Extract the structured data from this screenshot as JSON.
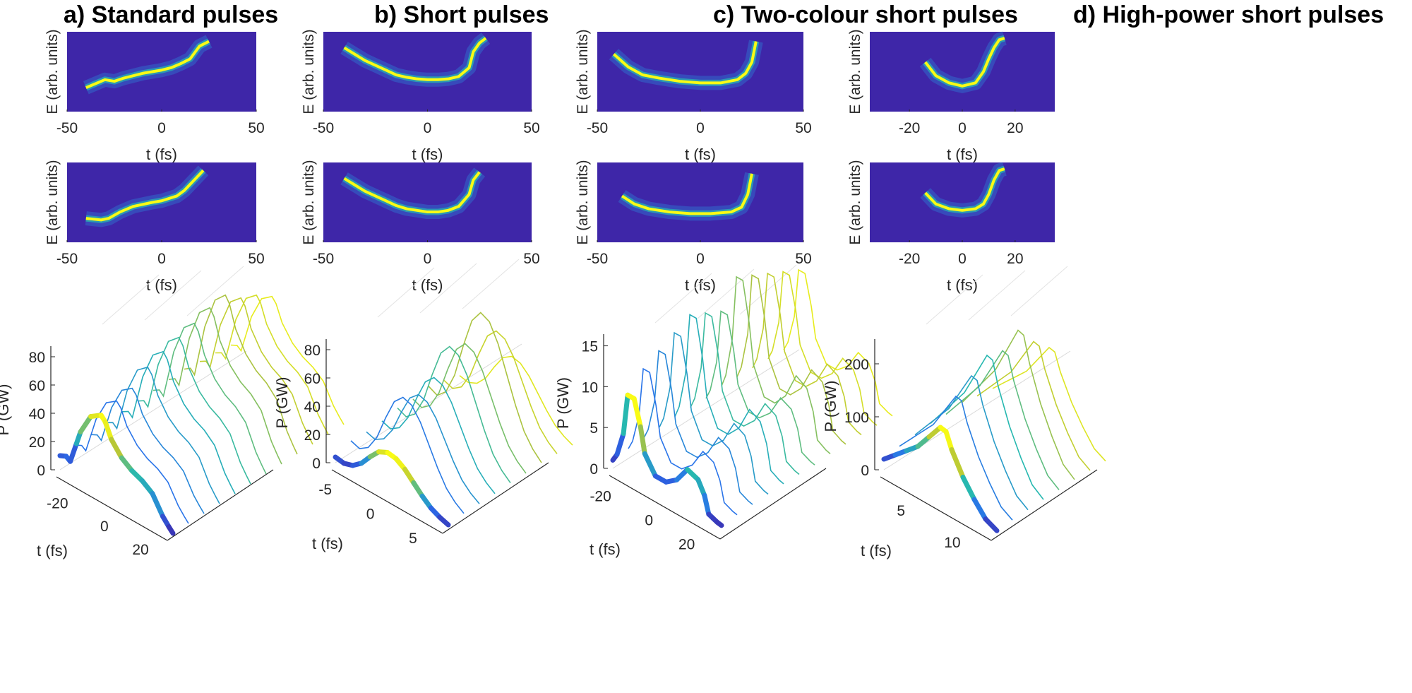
{
  "panel_titles": [
    "a) Standard pulses",
    "b) Short pulses",
    "c) Two-colour short pulses",
    "d) High-power short pulses"
  ],
  "labels": {
    "energy_axis": "E (arb. units)",
    "time_axis": "t (fs)",
    "power_axis": "P (GW)"
  },
  "colors": {
    "colormap_low": "#3e26a8",
    "colormap_mid": "#27b8b0",
    "colormap_high": "#f9fb15",
    "axis": "#262626"
  },
  "chart_data": [
    {
      "id": "a",
      "type": "heatmap",
      "row": "top",
      "title": "a) Standard pulses",
      "xlabel": "t (fs)",
      "ylabel": "E (arb. units)",
      "xlim": [
        -50,
        50
      ],
      "xticks": [
        -50,
        0,
        50
      ],
      "trace": {
        "t": [
          -40,
          -30,
          -25,
          -20,
          -15,
          -10,
          -5,
          0,
          5,
          10,
          15,
          20,
          25
        ],
        "y": [
          0.3,
          0.4,
          0.38,
          0.42,
          0.45,
          0.48,
          0.5,
          0.52,
          0.55,
          0.6,
          0.66,
          0.82,
          0.88
        ]
      }
    },
    {
      "id": "b",
      "type": "heatmap",
      "row": "top",
      "title": "b) Short pulses",
      "xlabel": "t (fs)",
      "ylabel": "E (arb. units)",
      "xlim": [
        -50,
        50
      ],
      "xticks": [
        -50,
        0,
        50
      ],
      "trace": {
        "t": [
          -40,
          -35,
          -30,
          -25,
          -20,
          -15,
          -10,
          -5,
          0,
          5,
          10,
          15,
          20,
          22,
          25,
          28
        ],
        "y": [
          0.8,
          0.72,
          0.64,
          0.58,
          0.52,
          0.46,
          0.43,
          0.41,
          0.4,
          0.4,
          0.41,
          0.44,
          0.55,
          0.75,
          0.86,
          0.92
        ]
      }
    },
    {
      "id": "c",
      "type": "heatmap",
      "row": "top",
      "title": "c) Two-colour short pulses",
      "xlabel": "t (fs)",
      "ylabel": "E (arb. units)",
      "xlim": [
        -50,
        50
      ],
      "xticks": [
        -50,
        0,
        50
      ],
      "trace": {
        "t": [
          -42,
          -35,
          -28,
          -20,
          -10,
          0,
          10,
          18,
          22,
          25,
          27
        ],
        "y": [
          0.72,
          0.56,
          0.46,
          0.42,
          0.38,
          0.36,
          0.36,
          0.4,
          0.48,
          0.62,
          0.88
        ]
      }
    },
    {
      "id": "d",
      "type": "heatmap",
      "row": "top",
      "title": "d) High-power short pulses",
      "xlabel": "t (fs)",
      "ylabel": "E (arb. units)",
      "xlim": [
        -35,
        35
      ],
      "xticks": [
        -20,
        0,
        20
      ],
      "trace": {
        "t": [
          -14,
          -10,
          -5,
          0,
          5,
          8,
          10,
          12,
          14,
          16
        ],
        "y": [
          0.62,
          0.45,
          0.36,
          0.32,
          0.36,
          0.5,
          0.66,
          0.8,
          0.9,
          0.92
        ]
      }
    },
    {
      "id": "a",
      "type": "heatmap",
      "row": "middle",
      "xlabel": "t (fs)",
      "ylabel": "E (arb. units)",
      "xlim": [
        -50,
        50
      ],
      "xticks": [
        -50,
        0,
        50
      ],
      "trace": {
        "t": [
          -40,
          -32,
          -28,
          -22,
          -15,
          -5,
          0,
          8,
          12,
          16,
          20,
          22
        ],
        "y": [
          0.3,
          0.28,
          0.3,
          0.38,
          0.45,
          0.5,
          0.52,
          0.58,
          0.65,
          0.75,
          0.85,
          0.9
        ]
      }
    },
    {
      "id": "b",
      "type": "heatmap",
      "row": "middle",
      "xlabel": "t (fs)",
      "ylabel": "E (arb. units)",
      "xlim": [
        -50,
        50
      ],
      "xticks": [
        -50,
        0,
        50
      ],
      "trace": {
        "t": [
          -40,
          -35,
          -30,
          -25,
          -20,
          -15,
          -10,
          -5,
          0,
          5,
          10,
          15,
          20,
          22,
          25
        ],
        "y": [
          0.8,
          0.72,
          0.64,
          0.58,
          0.52,
          0.46,
          0.42,
          0.4,
          0.38,
          0.38,
          0.4,
          0.45,
          0.6,
          0.78,
          0.88
        ]
      }
    },
    {
      "id": "c",
      "type": "heatmap",
      "row": "middle",
      "xlabel": "t (fs)",
      "ylabel": "E (arb. units)",
      "xlim": [
        -50,
        50
      ],
      "xticks": [
        -50,
        0,
        50
      ],
      "trace": {
        "t": [
          -38,
          -32,
          -25,
          -15,
          -5,
          5,
          15,
          20,
          23,
          25
        ],
        "y": [
          0.58,
          0.48,
          0.42,
          0.38,
          0.36,
          0.36,
          0.38,
          0.44,
          0.6,
          0.86
        ]
      }
    },
    {
      "id": "d",
      "type": "heatmap",
      "row": "middle",
      "xlabel": "t (fs)",
      "ylabel": "E (arb. units)",
      "xlim": [
        -35,
        35
      ],
      "xticks": [
        -20,
        0,
        20
      ],
      "trace": {
        "t": [
          -14,
          -10,
          -5,
          0,
          5,
          8,
          10,
          12,
          14,
          16
        ],
        "y": [
          0.62,
          0.48,
          0.42,
          0.4,
          0.42,
          0.48,
          0.6,
          0.78,
          0.9,
          0.92
        ]
      }
    },
    {
      "id": "a",
      "type": "line",
      "row": "bottom",
      "projection": "waterfall-3d",
      "xlabel": "t (fs)",
      "ylabel": "P (GW)",
      "ylim": [
        0,
        85
      ],
      "yticks": [
        0,
        20,
        40,
        60,
        80
      ],
      "xlim": [
        -30,
        25
      ],
      "xticks": [
        -20,
        0,
        20
      ],
      "highlight": {
        "t": [
          -30,
          -27,
          -25,
          -22,
          -20,
          -15,
          -10,
          -8,
          -5,
          0,
          5,
          10,
          15,
          20,
          23,
          25
        ],
        "p": [
          10,
          12,
          10,
          25,
          35,
          50,
          55,
          52,
          42,
          33,
          28,
          25,
          20,
          8,
          3,
          0
        ]
      },
      "series_count": 12,
      "series_peaks": [
        55,
        58,
        60,
        68,
        72,
        75,
        78,
        82,
        84,
        75,
        70,
        62
      ]
    },
    {
      "id": "b",
      "type": "line",
      "row": "bottom",
      "projection": "waterfall-3d",
      "xlabel": "t (fs)",
      "ylabel": "P (GW)",
      "ylim": [
        0,
        85
      ],
      "yticks": [
        0,
        20,
        40,
        60,
        80
      ],
      "xlim": [
        -6,
        7
      ],
      "xticks": [
        -5,
        0,
        5
      ],
      "highlight": {
        "t": [
          -6,
          -5,
          -4,
          -3,
          -2,
          -1,
          0,
          1,
          2,
          3,
          4,
          5,
          6,
          7
        ],
        "p": [
          4,
          3,
          5,
          10,
          18,
          25,
          28,
          27,
          23,
          17,
          11,
          6,
          3,
          1
        ]
      },
      "series_count": 9,
      "series_peaks": [
        28,
        60,
        55,
        60,
        75,
        70,
        85,
        65,
        40
      ]
    },
    {
      "id": "c",
      "type": "line",
      "row": "bottom",
      "projection": "waterfall-3d",
      "xlabel": "t (fs)",
      "ylabel": "P (GW)",
      "ylim": [
        0,
        16
      ],
      "yticks": [
        0,
        5,
        10,
        15
      ],
      "xlim": [
        -25,
        28
      ],
      "xticks": [
        -20,
        0,
        20
      ],
      "highlight": {
        "t": [
          -25,
          -23,
          -20,
          -18,
          -15,
          -12,
          -10,
          -5,
          0,
          5,
          10,
          15,
          18,
          20,
          22,
          24,
          26
        ],
        "p": [
          1,
          2,
          5,
          10,
          10,
          7,
          4,
          2,
          2,
          3,
          5,
          4.5,
          3,
          1,
          0.8,
          0.6,
          0.5
        ]
      },
      "series_count": 12,
      "series_peaks": [
        10,
        12,
        13,
        14,
        15,
        14,
        13,
        16,
        15,
        14,
        13,
        12
      ]
    },
    {
      "id": "d",
      "type": "line",
      "row": "bottom",
      "projection": "waterfall-3d",
      "xlabel": "t (fs)",
      "ylabel": "P (GW)",
      "ylim": [
        0,
        240
      ],
      "yticks": [
        0,
        100,
        200
      ],
      "xlim": [
        2,
        12
      ],
      "xticks": [
        5,
        10
      ],
      "highlight": {
        "t": [
          2,
          3,
          4,
          5,
          6,
          7,
          7.5,
          8,
          9,
          10,
          11,
          12
        ],
        "p": [
          20,
          40,
          60,
          80,
          110,
          140,
          138,
          110,
          70,
          40,
          15,
          5
        ]
      },
      "series_count": 8,
      "series_peaks": [
        140,
        180,
        200,
        220,
        210,
        230,
        190,
        160
      ]
    }
  ]
}
